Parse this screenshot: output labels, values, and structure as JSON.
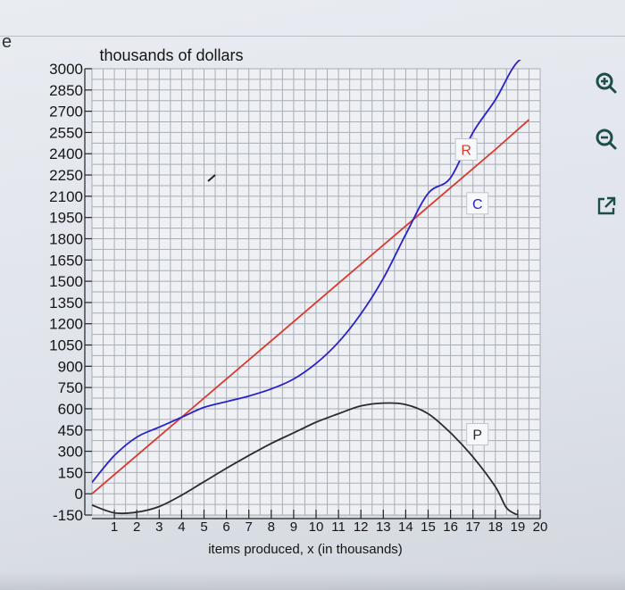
{
  "toolbar": {
    "zoom_in_icon": "zoom-in-icon",
    "zoom_out_icon": "zoom-out-icon",
    "open_external_icon": "open-external-icon"
  },
  "colors": {
    "revenue": "#d9382c",
    "cost": "#2a22c8",
    "profit": "#2b2b2b",
    "grid": "#a8adb6",
    "toolbar_icon": "#1c4f4a"
  },
  "chart_data": {
    "type": "line",
    "title": "thousands of dollars",
    "xlabel": "items produced, x (in thousands)",
    "ylabel": "",
    "xlim": [
      0,
      20
    ],
    "ylim": [
      -150,
      3000
    ],
    "x_ticks": [
      "1",
      "2",
      "3",
      "4",
      "5",
      "6",
      "7",
      "8",
      "9",
      "10",
      "11",
      "12",
      "13",
      "14",
      "15",
      "16",
      "17",
      "18",
      "19",
      "20"
    ],
    "y_ticks": [
      "3000",
      "2850",
      "2700",
      "2550",
      "2400",
      "2250",
      "2100",
      "1950",
      "1800",
      "1650",
      "1500",
      "1350",
      "1200",
      "1050",
      "900",
      "750",
      "600",
      "450",
      "300",
      "150",
      "0",
      "-150"
    ],
    "grid": true,
    "annotations": [
      {
        "text": "R",
        "series": "R"
      },
      {
        "text": "C",
        "series": "C"
      },
      {
        "text": "P",
        "series": "P"
      }
    ],
    "series": [
      {
        "name": "R",
        "color": "#d9382c",
        "x": [
          0,
          2,
          4,
          6,
          8,
          10,
          12,
          14,
          16,
          18,
          19.5
        ],
        "y": [
          0,
          270,
          540,
          810,
          1080,
          1350,
          1620,
          1890,
          2160,
          2430,
          2640
        ]
      },
      {
        "name": "C",
        "color": "#2a22c8",
        "x": [
          0,
          1,
          2,
          3,
          4,
          5,
          6,
          7,
          8,
          9,
          10,
          11,
          12,
          13,
          14,
          15,
          16,
          17,
          18,
          19,
          20
        ],
        "y": [
          80,
          270,
          400,
          470,
          540,
          610,
          650,
          690,
          740,
          810,
          920,
          1070,
          1270,
          1520,
          1830,
          2120,
          2230,
          2550,
          2780,
          3050,
          3100
        ]
      },
      {
        "name": "P",
        "color": "#2b2b2b",
        "x": [
          0,
          1,
          2,
          3,
          4,
          5,
          6,
          7,
          8,
          9,
          10,
          11,
          12,
          13,
          14,
          15,
          16,
          17,
          18,
          18.5,
          19
        ],
        "y": [
          -80,
          -135,
          -130,
          -90,
          -10,
          85,
          180,
          270,
          355,
          430,
          505,
          565,
          620,
          640,
          630,
          565,
          430,
          260,
          50,
          -100,
          -150
        ]
      }
    ]
  }
}
